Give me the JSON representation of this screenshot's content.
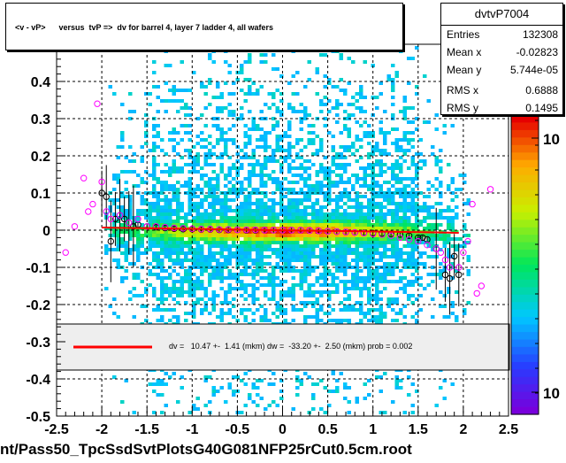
{
  "title": "<v - vP>      versus  tvP =>  dv for barrel 4, layer 7 ladder 4, all wafers",
  "footer": "nt/Pass50_TpcSsdSvtPlotsG40G081NFP25rCut0.5cm.root",
  "stats": {
    "name": "dvtvP7004",
    "rows": [
      {
        "key": "Entries",
        "value": "132308"
      },
      {
        "key": "Mean x",
        "value": "-0.02823"
      },
      {
        "key": "Mean y",
        "value": "5.744e-05"
      },
      {
        "key": "RMS x",
        "value": "0.6888"
      },
      {
        "key": "RMS y",
        "value": "0.1495"
      }
    ]
  },
  "fit": {
    "text": "dv =   10.47 +-  1.41 (mkm) dw =  -33.20 +-  2.50 (mkm) prob = 0.002",
    "line_color": "#ff0000"
  },
  "colors": {
    "fit_line": "#ff0000",
    "marker_open": "#000000",
    "marker_pink": "#ff00ff",
    "legend_band": "#eeeeee"
  },
  "chart_data": {
    "type": "scatter",
    "title": "<v - vP>      versus  tvP =>  dv for barrel 4, layer 7 ladder 4, all wafers",
    "xlim": [
      -2.5,
      2.5
    ],
    "ylim": [
      -0.5,
      0.5
    ],
    "x_ticks": [
      "-2.5",
      "-2",
      "-1.5",
      "-1",
      "-0.5",
      "0",
      "0.5",
      "1",
      "1.5",
      "2",
      "2.5"
    ],
    "y_ticks": [
      "-0.5",
      "-0.4",
      "-0.3",
      "-0.2",
      "-0.1",
      "0",
      "0.1",
      "0.2",
      "0.3",
      "0.4"
    ],
    "grid": true,
    "z_scale": "log",
    "z_ticks": [
      "10",
      "10"
    ],
    "fit_line": {
      "x": [
        -2.0,
        1.95
      ],
      "y": [
        0.007,
        -0.007
      ]
    },
    "series": [
      {
        "marker": "open-circle-black",
        "x": [
          -2.0,
          -1.95,
          -1.9,
          -1.85,
          -1.8,
          -1.75,
          -1.7,
          -1.65,
          -1.6,
          -1.5,
          -1.4,
          -1.3,
          -1.2,
          -1.1,
          -1.0,
          -0.9,
          -0.8,
          -0.7,
          -0.6,
          -0.5,
          -0.4,
          -0.3,
          -0.2,
          -0.1,
          0.0,
          0.1,
          0.2,
          0.3,
          0.4,
          0.5,
          0.6,
          0.7,
          0.8,
          0.9,
          1.0,
          1.1,
          1.2,
          1.3,
          1.4,
          1.5,
          1.55,
          1.6,
          1.7,
          1.8,
          1.85,
          1.9,
          1.95
        ],
        "y": [
          0.1,
          0.09,
          -0.03,
          0.03,
          0.04,
          0.03,
          0.02,
          0.01,
          0.015,
          0.01,
          0.008,
          0.006,
          0.004,
          0.003,
          0.003,
          0.002,
          0.002,
          0.001,
          0.001,
          0.001,
          0.0,
          0.0,
          0.0,
          0.0,
          0.0,
          0.0,
          0.0,
          -0.001,
          -0.002,
          -0.003,
          -0.004,
          -0.005,
          -0.006,
          -0.007,
          -0.008,
          -0.009,
          -0.01,
          -0.012,
          -0.015,
          -0.02,
          -0.02,
          -0.025,
          -0.05,
          -0.12,
          -0.13,
          -0.07,
          -0.12
        ]
      },
      {
        "marker": "open-circle-pink",
        "x": [
          -2.4,
          -2.3,
          -2.2,
          -2.15,
          -2.1,
          -2.05,
          -2.0,
          -1.95,
          -1.9,
          -1.8,
          -1.7,
          -1.6,
          -1.5,
          -1.4,
          -1.3,
          -1.2,
          -1.1,
          -1.0,
          -0.9,
          -0.8,
          -0.7,
          -0.6,
          -0.5,
          -0.4,
          -0.3,
          -0.2,
          -0.1,
          0.0,
          0.1,
          0.2,
          0.3,
          0.4,
          0.5,
          0.6,
          0.7,
          0.8,
          0.9,
          1.0,
          1.1,
          1.2,
          1.3,
          1.4,
          1.5,
          1.6,
          1.7,
          1.75,
          1.8,
          1.85,
          1.95,
          2.0,
          2.05,
          2.1,
          2.15,
          2.2,
          2.3
        ],
        "y": [
          -0.06,
          0.01,
          0.14,
          0.05,
          0.07,
          0.34,
          0.13,
          0.05,
          0.03,
          0.04,
          0.02,
          0.03,
          0.01,
          0.01,
          0.008,
          0.006,
          0.005,
          0.004,
          0.003,
          0.003,
          0.002,
          0.002,
          0.001,
          0.001,
          0.001,
          0.0,
          0.0,
          0.0,
          0.0,
          0.0,
          -0.001,
          -0.002,
          -0.003,
          -0.004,
          -0.005,
          -0.006,
          -0.008,
          -0.01,
          -0.012,
          -0.015,
          -0.02,
          -0.025,
          -0.03,
          -0.04,
          -0.05,
          -0.06,
          -0.08,
          -0.1,
          -0.1,
          -0.06,
          -0.03,
          0.07,
          -0.17,
          -0.15,
          0.11
        ]
      }
    ]
  }
}
